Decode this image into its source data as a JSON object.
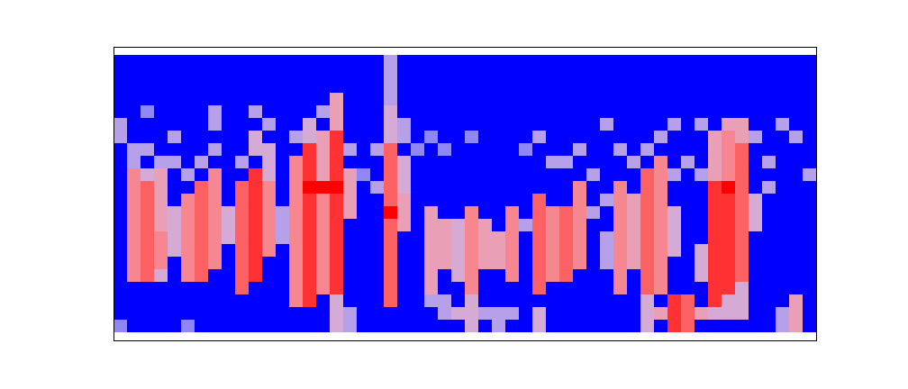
{
  "chart_data": {
    "type": "heatmap",
    "tick_labels": false,
    "cells": [
      [
        0,
        0,
        0,
        0,
        0,
        0,
        0,
        0,
        0,
        0,
        0,
        0,
        0,
        0,
        0,
        0,
        0,
        0,
        0,
        0,
        0.4,
        0,
        0,
        0,
        0,
        0,
        0,
        0,
        0,
        0,
        0,
        0,
        0,
        0,
        0,
        0,
        0,
        0,
        0,
        0,
        0,
        0,
        0,
        0,
        0,
        0,
        0,
        0,
        0,
        0,
        0,
        0
      ],
      [
        0,
        0,
        0,
        0,
        0,
        0,
        0,
        0,
        0,
        0,
        0,
        0,
        0,
        0,
        0,
        0,
        0,
        0,
        0,
        0,
        0.4,
        0,
        0,
        0,
        0,
        0,
        0,
        0,
        0,
        0,
        0,
        0,
        0,
        0,
        0,
        0,
        0,
        0,
        0,
        0,
        0,
        0,
        0,
        0,
        0,
        0,
        0,
        0,
        0,
        0,
        0,
        0
      ],
      [
        0,
        0,
        0,
        0,
        0,
        0,
        0,
        0,
        0,
        0,
        0,
        0,
        0,
        0,
        0,
        0,
        0,
        0,
        0,
        0,
        0.4,
        0,
        0,
        0,
        0,
        0,
        0,
        0,
        0,
        0,
        0,
        0,
        0,
        0,
        0,
        0,
        0,
        0,
        0,
        0,
        0,
        0,
        0,
        0,
        0,
        0,
        0,
        0,
        0,
        0,
        0,
        0
      ],
      [
        0,
        0,
        0,
        0,
        0,
        0,
        0,
        0,
        0,
        0,
        0,
        0,
        0,
        0,
        0,
        0,
        0.6,
        0,
        0,
        0,
        0.4,
        0,
        0,
        0,
        0,
        0,
        0,
        0,
        0,
        0,
        0,
        0,
        0,
        0,
        0,
        0,
        0,
        0,
        0,
        0,
        0,
        0,
        0,
        0,
        0,
        0,
        0,
        0,
        0,
        0,
        0,
        0
      ],
      [
        0,
        0,
        0.3,
        0,
        0,
        0,
        0,
        0.4,
        0,
        0,
        0.4,
        0,
        0,
        0,
        0,
        0.4,
        0.6,
        0,
        0,
        0,
        0.5,
        0,
        0,
        0,
        0,
        0,
        0,
        0,
        0,
        0,
        0,
        0,
        0,
        0,
        0,
        0,
        0,
        0,
        0,
        0,
        0,
        0,
        0,
        0,
        0,
        0,
        0,
        0,
        0,
        0,
        0,
        0
      ],
      [
        0.4,
        0,
        0,
        0,
        0,
        0,
        0,
        0.4,
        0,
        0,
        0,
        0.4,
        0,
        0,
        0.5,
        0,
        0.6,
        0,
        0,
        0,
        0.5,
        0.4,
        0,
        0,
        0,
        0,
        0,
        0,
        0,
        0,
        0,
        0,
        0,
        0,
        0,
        0,
        0.4,
        0,
        0,
        0,
        0,
        0.4,
        0,
        0.4,
        0,
        0.6,
        0.6,
        0,
        0,
        0.4,
        0,
        0
      ],
      [
        0.4,
        0,
        0,
        0,
        0.4,
        0,
        0,
        0,
        0,
        0,
        0.5,
        0,
        0,
        0.4,
        0.5,
        0.6,
        0.9,
        0,
        0,
        0,
        0.5,
        0.4,
        0,
        0.3,
        0,
        0,
        0.3,
        0,
        0,
        0,
        0,
        0.4,
        0,
        0,
        0,
        0,
        0,
        0,
        0,
        0,
        0.4,
        0,
        0,
        0,
        0.6,
        0.7,
        0.6,
        0.4,
        0,
        0,
        0.4,
        0
      ],
      [
        0,
        0.4,
        0.4,
        0,
        0,
        0,
        0,
        0.4,
        0,
        0,
        0.5,
        0.5,
        0,
        0,
        0.9,
        0.6,
        0.9,
        0.4,
        0,
        0.4,
        0.8,
        0,
        0.3,
        0,
        0.3,
        0,
        0,
        0,
        0,
        0,
        0.3,
        0,
        0,
        0,
        0.4,
        0,
        0,
        0.4,
        0,
        0.4,
        0,
        0,
        0,
        0,
        0.6,
        0.7,
        0.8,
        0,
        0,
        0,
        0,
        0
      ],
      [
        0,
        0.4,
        0,
        0.4,
        0.4,
        0,
        0.4,
        0,
        0,
        0.4,
        0,
        0.5,
        0,
        0.7,
        0.9,
        0.6,
        0.9,
        0,
        0,
        0,
        0.8,
        0.5,
        0,
        0,
        0,
        0,
        0,
        0,
        0,
        0,
        0,
        0,
        0.4,
        0.4,
        0,
        0,
        0,
        0,
        0.4,
        0,
        0.7,
        0,
        0.4,
        0,
        0.6,
        0.7,
        0.8,
        0,
        0.4,
        0,
        0,
        0
      ],
      [
        0,
        0.7,
        0.5,
        0.6,
        0,
        0.4,
        0,
        0.7,
        0,
        0,
        0.9,
        0.5,
        0,
        0.7,
        0.9,
        0.6,
        0.9,
        0.6,
        0.3,
        0,
        0.8,
        0.5,
        0,
        0,
        0,
        0,
        0,
        0,
        0,
        0,
        0,
        0,
        0,
        0,
        0,
        0.4,
        0,
        0,
        0,
        0.8,
        0.7,
        0.4,
        0,
        0.4,
        0.6,
        0.7,
        0.8,
        0,
        0,
        0,
        0,
        0.4
      ],
      [
        0,
        0.7,
        0.8,
        0.6,
        0,
        0,
        0.8,
        0.7,
        0,
        0.8,
        0.9,
        0.7,
        0,
        0.7,
        1,
        1,
        1,
        0.6,
        0,
        0.4,
        0.8,
        0.5,
        0,
        0,
        0,
        0,
        0,
        0,
        0,
        0,
        0,
        0,
        0,
        0,
        0.7,
        0,
        0,
        0.7,
        0,
        0.8,
        0.7,
        0,
        0,
        0,
        0.9,
        1,
        0.8,
        0,
        0.4,
        0,
        0,
        0
      ],
      [
        0,
        0.7,
        0.8,
        0.6,
        0,
        0.7,
        0.8,
        0.7,
        0,
        0.8,
        0.9,
        0.7,
        0,
        0.7,
        0.9,
        0.7,
        0.9,
        0.6,
        0,
        0,
        0.8,
        0.6,
        0,
        0,
        0,
        0,
        0,
        0,
        0,
        0,
        0,
        0.8,
        0,
        0,
        0.7,
        0,
        0.4,
        0.7,
        0.6,
        0.8,
        0.7,
        0,
        0,
        0,
        0.9,
        0.9,
        0.8,
        0.5,
        0,
        0,
        0,
        0
      ],
      [
        0,
        0.7,
        0.8,
        0.6,
        0.5,
        0.7,
        0.8,
        0.7,
        0.5,
        0.8,
        0.9,
        0.7,
        0.4,
        0.7,
        0.9,
        0.7,
        0.9,
        0.6,
        0,
        0,
        1,
        0.6,
        0,
        0.6,
        0,
        0,
        0.7,
        0,
        0,
        0.7,
        0,
        0.8,
        0.7,
        0.8,
        0.7,
        0.4,
        0,
        0.7,
        0.6,
        0.8,
        0.7,
        0.5,
        0,
        0,
        0.9,
        0.9,
        0.8,
        0.5,
        0,
        0,
        0,
        0
      ],
      [
        0,
        0.7,
        0.8,
        0.6,
        0.5,
        0.7,
        0.8,
        0.7,
        0.5,
        0.8,
        0.9,
        0.7,
        0.4,
        0.7,
        0.9,
        0.7,
        0.9,
        0,
        0,
        0,
        0.8,
        0.6,
        0,
        0.6,
        0.6,
        0.5,
        0.7,
        0.6,
        0,
        0.7,
        0.4,
        0.8,
        0.7,
        0.8,
        0.7,
        0,
        0,
        0.7,
        0.6,
        0.8,
        0.7,
        0.5,
        0,
        0,
        0.9,
        0.9,
        0.8,
        0.5,
        0,
        0,
        0,
        0
      ],
      [
        0,
        0.7,
        0.8,
        0.7,
        0.5,
        0.7,
        0.8,
        0.7,
        0.5,
        0.8,
        0.9,
        0.7,
        0.4,
        0.7,
        0.9,
        0.7,
        0.9,
        0,
        0,
        0,
        0.8,
        0,
        0,
        0.6,
        0.6,
        0.5,
        0.7,
        0.6,
        0.6,
        0.7,
        0,
        0.8,
        0.7,
        0.8,
        0.7,
        0,
        0.4,
        0.7,
        0.6,
        0.8,
        0.7,
        0.5,
        0,
        0,
        0.9,
        0.9,
        0.8,
        0,
        0,
        0,
        0,
        0
      ],
      [
        0,
        0.7,
        0.8,
        0.7,
        0.5,
        0.7,
        0.8,
        0.7,
        0,
        0.8,
        0.9,
        0.7,
        0,
        0.7,
        0.9,
        0.7,
        0.9,
        0,
        0,
        0,
        0.8,
        0,
        0,
        0.6,
        0.6,
        0.5,
        0.7,
        0.6,
        0.6,
        0.7,
        0,
        0.8,
        0.7,
        0.8,
        0.7,
        0,
        0.4,
        0.7,
        0.6,
        0.8,
        0.7,
        0.5,
        0,
        0.5,
        0.9,
        0.9,
        0.8,
        0,
        0,
        0,
        0,
        0
      ],
      [
        0,
        0.7,
        0.8,
        0.7,
        0,
        0.7,
        0.8,
        0.7,
        0,
        0.8,
        0.9,
        0,
        0,
        0.7,
        0.9,
        0.7,
        0.9,
        0,
        0,
        0,
        0.8,
        0,
        0,
        0.6,
        0.6,
        0.5,
        0.7,
        0.6,
        0.6,
        0.7,
        0,
        0.8,
        0.7,
        0.8,
        0.7,
        0,
        0.4,
        0.7,
        0.6,
        0.8,
        0.7,
        0,
        0,
        0.5,
        0.9,
        0.9,
        0.8,
        0,
        0,
        0,
        0,
        0
      ],
      [
        0,
        0.7,
        0.8,
        0.5,
        0,
        0.7,
        0.8,
        0,
        0,
        0.8,
        0.9,
        0,
        0,
        0.7,
        0.9,
        0.7,
        0.9,
        0,
        0,
        0,
        0.8,
        0,
        0,
        0.6,
        0,
        0.5,
        0.7,
        0,
        0,
        0.7,
        0,
        0.8,
        0.7,
        0.8,
        0,
        0,
        0,
        0.7,
        0,
        0.8,
        0.7,
        0,
        0,
        0.5,
        0.9,
        0.9,
        0.8,
        0,
        0,
        0,
        0,
        0
      ],
      [
        0,
        0,
        0,
        0,
        0,
        0,
        0,
        0,
        0,
        0.8,
        0,
        0,
        0,
        0.7,
        0.9,
        0.7,
        0.9,
        0,
        0,
        0,
        0.8,
        0,
        0,
        0.6,
        0,
        0,
        0.7,
        0,
        0,
        0,
        0,
        0.8,
        0,
        0,
        0,
        0,
        0,
        0.7,
        0,
        0.8,
        0.7,
        0,
        0,
        0,
        0.9,
        0.9,
        0.5,
        0,
        0,
        0,
        0,
        0
      ],
      [
        0,
        0,
        0,
        0,
        0,
        0,
        0,
        0,
        0,
        0,
        0,
        0,
        0,
        0.7,
        0.9,
        0,
        0.5,
        0,
        0,
        0,
        0.8,
        0,
        0,
        0.4,
        0.4,
        0,
        0.5,
        0,
        0,
        0,
        0,
        0,
        0,
        0,
        0,
        0,
        0,
        0,
        0,
        0.5,
        0,
        0.9,
        0.8,
        0,
        0.9,
        0.5,
        0.5,
        0,
        0,
        0,
        0.6,
        0
      ],
      [
        0,
        0,
        0,
        0,
        0,
        0,
        0,
        0,
        0,
        0,
        0,
        0,
        0,
        0,
        0,
        0,
        0.5,
        0.4,
        0,
        0,
        0,
        0,
        0,
        0,
        0.4,
        0.5,
        0.5,
        0.4,
        0.4,
        0.4,
        0,
        0.5,
        0,
        0,
        0,
        0,
        0,
        0,
        0,
        0.5,
        0.6,
        0.9,
        0.8,
        0.6,
        0.5,
        0.5,
        0.5,
        0,
        0,
        0.4,
        0.6,
        0
      ],
      [
        0.3,
        0,
        0,
        0,
        0,
        0.3,
        0,
        0,
        0,
        0,
        0,
        0,
        0,
        0,
        0,
        0,
        0.5,
        0.4,
        0,
        0,
        0,
        0,
        0,
        0,
        0,
        0,
        0.5,
        0,
        0.4,
        0,
        0,
        0.5,
        0,
        0,
        0,
        0,
        0,
        0,
        0,
        0.5,
        0,
        0.9,
        0.8,
        0,
        0,
        0,
        0,
        0,
        0,
        0.4,
        0.6,
        0
      ]
    ]
  }
}
